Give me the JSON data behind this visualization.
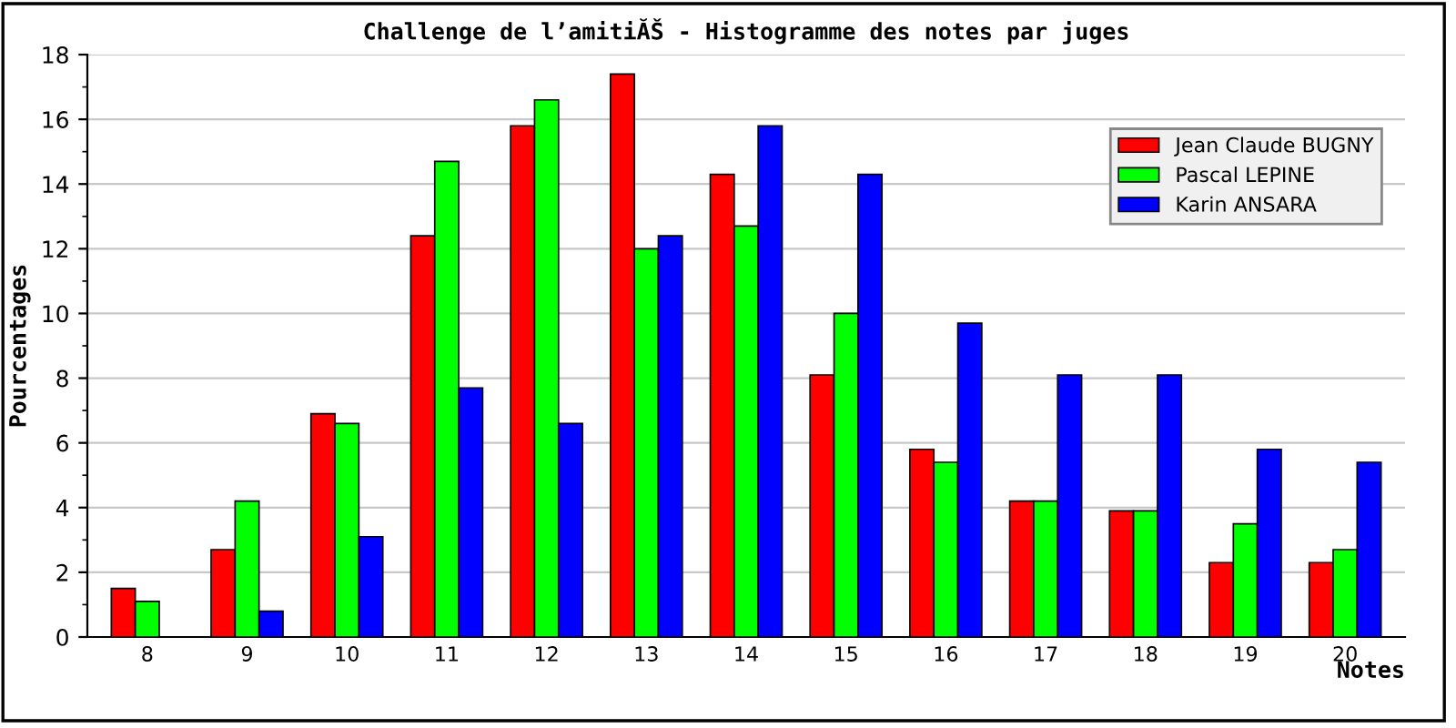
{
  "chart_data": {
    "type": "bar",
    "title": "Challenge de l’amitiĂŠ - Histogramme des notes par juges",
    "xlabel": "Notes",
    "ylabel": "Pourcentages",
    "categories": [
      "8",
      "9",
      "10",
      "11",
      "12",
      "13",
      "14",
      "15",
      "16",
      "17",
      "18",
      "19",
      "20"
    ],
    "series": [
      {
        "name": "Jean Claude BUGNY",
        "color": "#ff0000",
        "values": [
          1.5,
          2.7,
          6.9,
          12.4,
          15.8,
          17.4,
          14.3,
          8.1,
          5.8,
          4.2,
          3.9,
          2.3,
          2.3
        ]
      },
      {
        "name": "Pascal LEPINE",
        "color": "#00ff00",
        "values": [
          1.1,
          4.2,
          6.6,
          14.7,
          16.6,
          12.0,
          12.7,
          10.0,
          5.4,
          4.2,
          3.9,
          3.5,
          2.7
        ]
      },
      {
        "name": "Karin ANSARA",
        "color": "#0000ff",
        "values": [
          null,
          0.8,
          3.1,
          7.7,
          6.6,
          12.4,
          15.8,
          14.3,
          9.7,
          8.1,
          8.1,
          5.8,
          5.4
        ]
      }
    ],
    "ylim": [
      0,
      18
    ],
    "yticks": [
      0,
      2,
      4,
      6,
      8,
      10,
      12,
      14,
      16,
      18
    ],
    "grid": "y",
    "legend": "top right"
  }
}
